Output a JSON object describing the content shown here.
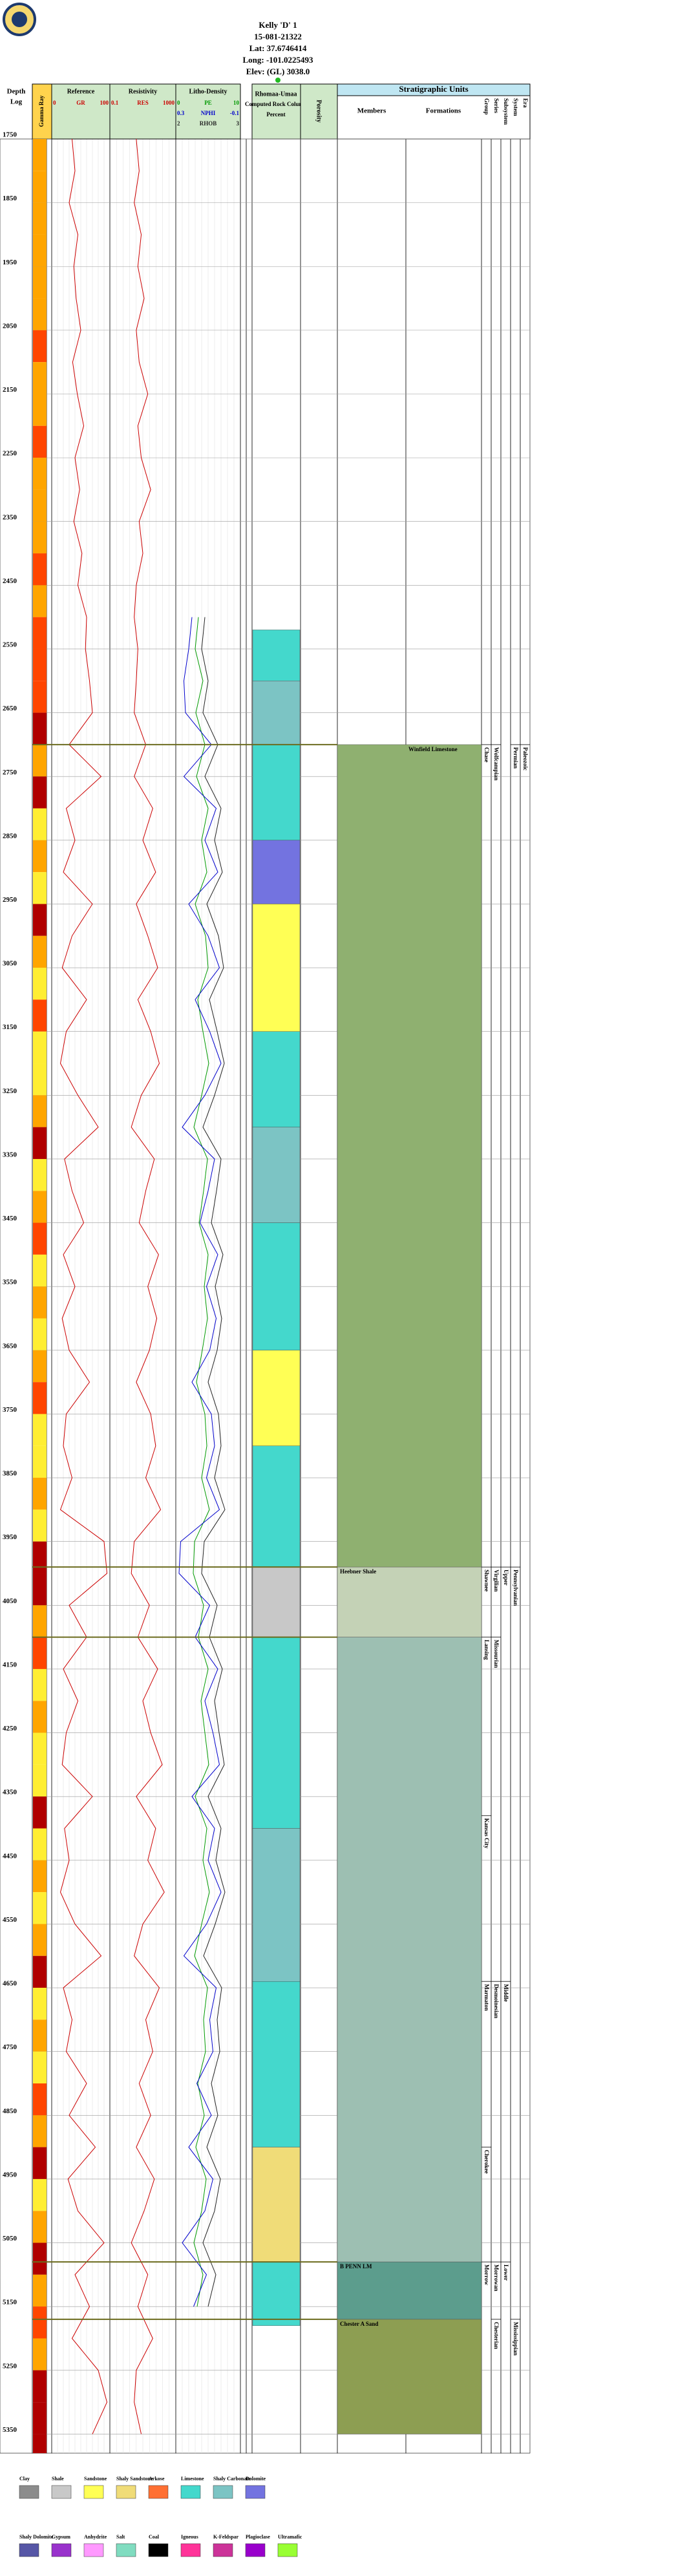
{
  "header": {
    "title": "Kelly 'D' 1",
    "api": "15-081-21322",
    "lat": "Lat: 37.6746414",
    "long": "Long: -101.0225493",
    "elev": "Elev: (GL) 3038.0"
  },
  "columns": {
    "depth": "Depth",
    "log": "Log",
    "gamma": "Gamma Ray",
    "rock": "Rhomaa-Umaa",
    "rock_sub": "Computed Rock Column",
    "rock_unit": "Percent",
    "porosity": "Porosity",
    "strat": "Stratigraphic Units",
    "members": "Members",
    "formations": "Formations",
    "group": "Group",
    "series": "Series",
    "subsystem": "Subsystem",
    "system": "System",
    "era": "Era"
  },
  "chart_data": {
    "type": "well-log",
    "ylim": [
      1750,
      5380
    ],
    "yticks": [
      1750,
      1850,
      1950,
      2050,
      2150,
      2250,
      2350,
      2450,
      2550,
      2650,
      2750,
      2850,
      2950,
      3050,
      3150,
      3250,
      3350,
      3450,
      3550,
      3650,
      3750,
      3850,
      3950,
      4050,
      4150,
      4250,
      4350,
      4450,
      4550,
      4650,
      4750,
      4850,
      4950,
      5050,
      5150,
      5250,
      5350
    ],
    "depths": [
      1750,
      1800,
      1850,
      1900,
      1950,
      2000,
      2050,
      2100,
      2150,
      2200,
      2250,
      2300,
      2350,
      2400,
      2450,
      2500,
      2550,
      2600,
      2650,
      2700,
      2750,
      2800,
      2850,
      2900,
      2950,
      3000,
      3050,
      3100,
      3150,
      3200,
      3250,
      3300,
      3350,
      3400,
      3450,
      3500,
      3550,
      3600,
      3650,
      3700,
      3750,
      3800,
      3850,
      3900,
      3950,
      4000,
      4050,
      4100,
      4150,
      4200,
      4250,
      4300,
      4350,
      4400,
      4450,
      4500,
      4550,
      4600,
      4650,
      4700,
      4750,
      4800,
      4850,
      4900,
      4950,
      5000,
      5050,
      5100,
      5150,
      5200,
      5250,
      5300,
      5350
    ],
    "tracks": [
      {
        "title": "Reference",
        "series": [
          {
            "name": "GR",
            "color": "#cc0000",
            "xlim": [
              0,
              100
            ],
            "values": [
              35,
              40,
              30,
              45,
              38,
              42,
              50,
              36,
              44,
              55,
              40,
              48,
              38,
              52,
              45,
              60,
              58,
              65,
              70,
              30,
              85,
              25,
              40,
              20,
              70,
              35,
              18,
              60,
              25,
              15,
              45,
              80,
              22,
              35,
              55,
              20,
              40,
              18,
              30,
              65,
              25,
              20,
              35,
              15,
              90,
              95,
              30,
              60,
              20,
              45,
              25,
              18,
              70,
              22,
              30,
              15,
              40,
              85,
              20,
              35,
              25,
              60,
              30,
              75,
              28,
              45,
              90,
              40,
              65,
              35,
              80,
              95,
              70
            ]
          }
        ]
      },
      {
        "title": "Resistivity",
        "log": true,
        "series": [
          {
            "name": "RES",
            "color": "#cc0000",
            "xlim": [
              0.1,
              1000
            ],
            "values": [
              4,
              6,
              3,
              8,
              5,
              12,
              4,
              6,
              20,
              5,
              8,
              30,
              6,
              10,
              4,
              3,
              5,
              4,
              3,
              15,
              3,
              40,
              10,
              60,
              4,
              20,
              80,
              5,
              30,
              100,
              8,
              2,
              50,
              15,
              6,
              90,
              20,
              70,
              25,
              4,
              30,
              60,
              15,
              120,
              3,
              2,
              25,
              5,
              80,
              10,
              30,
              150,
              4,
              60,
              20,
              200,
              10,
              3,
              100,
              15,
              40,
              6,
              30,
              4,
              50,
              12,
              2,
              20,
              5,
              40,
              4,
              3,
              8
            ]
          }
        ]
      },
      {
        "title": "Litho-Density",
        "series": [
          {
            "name": "PE",
            "color": "#009900",
            "xlim": [
              0,
              10
            ],
            "values": [
              null,
              null,
              null,
              null,
              null,
              null,
              null,
              null,
              null,
              null,
              null,
              null,
              null,
              null,
              null,
              3.5,
              3.0,
              4.2,
              3.1,
              4.5,
              3.2,
              5.0,
              4.0,
              4.8,
              3.0,
              4.6,
              5.0,
              3.4,
              4.2,
              5.1,
              4.0,
              2.8,
              4.9,
              4.3,
              3.6,
              5.0,
              4.4,
              4.9,
              4.1,
              3.2,
              4.5,
              4.8,
              4.0,
              5.2,
              2.9,
              2.7,
              4.3,
              3.5,
              5.0,
              3.9,
              4.5,
              5.1,
              3.0,
              4.8,
              4.2,
              5.2,
              4.0,
              2.9,
              4.9,
              4.3,
              4.6,
              3.4,
              4.4,
              3.1,
              4.7,
              4.0,
              2.8,
              4.2,
              3.3,
              null,
              null,
              null,
              null
            ]
          },
          {
            "name": "NPHI",
            "color": "#0000cc",
            "xlim": [
              0.3,
              -0.1
            ],
            "values": [
              null,
              null,
              null,
              null,
              null,
              null,
              null,
              null,
              null,
              null,
              null,
              null,
              null,
              null,
              null,
              0.2,
              0.22,
              0.25,
              0.24,
              0.08,
              0.25,
              0.05,
              0.12,
              0.04,
              0.22,
              0.1,
              0.03,
              0.18,
              0.09,
              0.02,
              0.12,
              0.26,
              0.06,
              0.1,
              0.15,
              0.04,
              0.11,
              0.05,
              0.09,
              0.2,
              0.08,
              0.06,
              0.11,
              0.03,
              0.27,
              0.28,
              0.09,
              0.18,
              0.04,
              0.12,
              0.07,
              0.03,
              0.2,
              0.06,
              0.1,
              0.02,
              0.11,
              0.25,
              0.05,
              0.09,
              0.07,
              0.17,
              0.08,
              0.22,
              0.07,
              0.12,
              0.26,
              0.11,
              0.19,
              null,
              null,
              null,
              null
            ]
          },
          {
            "name": "RHOB",
            "color": "#222222",
            "xlim": [
              2,
              3
            ],
            "values": [
              null,
              null,
              null,
              null,
              null,
              null,
              null,
              null,
              null,
              null,
              null,
              null,
              null,
              null,
              null,
              2.45,
              2.4,
              2.5,
              2.42,
              2.65,
              2.45,
              2.7,
              2.6,
              2.72,
              2.48,
              2.66,
              2.74,
              2.52,
              2.64,
              2.75,
              2.6,
              2.42,
              2.7,
              2.63,
              2.55,
              2.73,
              2.61,
              2.71,
              2.64,
              2.5,
              2.66,
              2.7,
              2.6,
              2.76,
              2.44,
              2.4,
              2.64,
              2.52,
              2.72,
              2.6,
              2.67,
              2.75,
              2.5,
              2.7,
              2.62,
              2.76,
              2.61,
              2.43,
              2.71,
              2.64,
              2.68,
              2.55,
              2.65,
              2.48,
              2.69,
              2.6,
              2.42,
              2.62,
              2.5,
              null,
              null,
              null,
              null
            ]
          }
        ]
      }
    ],
    "rock_column": [
      {
        "top": 2520,
        "base": 2600,
        "lithology": "Limestone"
      },
      {
        "top": 2600,
        "base": 2700,
        "lithology": "Shaly Carbonate"
      },
      {
        "top": 2700,
        "base": 2850,
        "lithology": "Limestone"
      },
      {
        "top": 2850,
        "base": 2950,
        "lithology": "Dolomite"
      },
      {
        "top": 2950,
        "base": 3150,
        "lithology": "Sandstone"
      },
      {
        "top": 3150,
        "base": 3300,
        "lithology": "Limestone"
      },
      {
        "top": 3300,
        "base": 3450,
        "lithology": "Shaly Carbonate"
      },
      {
        "top": 3450,
        "base": 3650,
        "lithology": "Limestone"
      },
      {
        "top": 3650,
        "base": 3800,
        "lithology": "Sandstone"
      },
      {
        "top": 3800,
        "base": 3990,
        "lithology": "Limestone"
      },
      {
        "top": 3990,
        "base": 4100,
        "lithology": "Shale"
      },
      {
        "top": 4100,
        "base": 4400,
        "lithology": "Limestone"
      },
      {
        "top": 4400,
        "base": 4640,
        "lithology": "Shaly Carbonate"
      },
      {
        "top": 4640,
        "base": 4900,
        "lithology": "Limestone"
      },
      {
        "top": 4900,
        "base": 5080,
        "lithology": "Shaly Sandstone"
      },
      {
        "top": 5080,
        "base": 5180,
        "lithology": "Limestone"
      }
    ],
    "members": [
      {
        "name": "Winfield Limestone",
        "top": 2700,
        "base": 3990,
        "color": "#8fb070"
      },
      {
        "name": "Heebner Shale",
        "top": 3990,
        "base": 4100,
        "color": "#c4d2b6"
      },
      {
        "top": 4100,
        "base": 5080,
        "color": "#9dbfb2"
      },
      {
        "name": "B PENN LM",
        "top": 5080,
        "base": 5170,
        "color": "#5c9d8d"
      },
      {
        "name": "Chester A Sand",
        "top": 5170,
        "base": 5350,
        "color": "#8d9e52"
      }
    ],
    "units": {
      "group": [
        {
          "name": "Chase",
          "top": 2700,
          "base": 3990
        },
        {
          "name": "Shawnee",
          "top": 3990,
          "base": 4100
        },
        {
          "name": "Lansing",
          "top": 4100,
          "base": 4380
        },
        {
          "name": "Kansas City",
          "top": 4380,
          "base": 4640
        },
        {
          "name": "Marmaton",
          "top": 4640,
          "base": 4900
        },
        {
          "name": "Cherokee",
          "top": 4900,
          "base": 5080
        },
        {
          "name": "Morrow",
          "top": 5080,
          "base": 5170
        }
      ],
      "series": [
        {
          "name": "Wolfcampian",
          "top": 2700,
          "base": 3990
        },
        {
          "name": "Virgilian",
          "top": 3990,
          "base": 4100
        },
        {
          "name": "Missourian",
          "top": 4100,
          "base": 4640
        },
        {
          "name": "Desmoinesian",
          "top": 4640,
          "base": 5080
        },
        {
          "name": "Morrowan",
          "top": 5080,
          "base": 5170
        },
        {
          "name": "Chesterian",
          "top": 5170,
          "base": 5350
        }
      ],
      "subsystem": [
        {
          "name": "Upper",
          "top": 3990,
          "base": 4640
        },
        {
          "name": "Middle",
          "top": 4640,
          "base": 5080
        },
        {
          "name": "Lower",
          "top": 5080,
          "base": 5170
        }
      ],
      "system": [
        {
          "name": "Permian",
          "top": 2700,
          "base": 3990
        },
        {
          "name": "Pennsylvanian",
          "top": 3990,
          "base": 5170
        },
        {
          "name": "Mississippian",
          "top": 5170,
          "base": 5350
        }
      ],
      "era": [
        {
          "name": "Paleozoic",
          "top": 2700,
          "base": 5350
        }
      ]
    },
    "legend": [
      {
        "name": "Clay",
        "color": "#8c8c8c"
      },
      {
        "name": "Shale",
        "color": "#c8c8c8"
      },
      {
        "name": "Sandstone",
        "color": "#ffff55"
      },
      {
        "name": "Shaly Sandstone",
        "color": "#f0dc78"
      },
      {
        "name": "Arkose",
        "color": "#ff7033"
      },
      {
        "name": "Limestone",
        "color": "#44d8cc"
      },
      {
        "name": "Shaly Carbonate",
        "color": "#7cc4c4"
      },
      {
        "name": "Dolomite",
        "color": "#7373e0"
      },
      {
        "name": "Shaly Dolomite",
        "color": "#5656a6"
      },
      {
        "name": "Gypsum",
        "color": "#9932cc"
      },
      {
        "name": "Anhydrite",
        "color": "#ff99ff"
      },
      {
        "name": "Salt",
        "color": "#80dcc0"
      },
      {
        "name": "Coal",
        "color": "#000000"
      },
      {
        "name": "Igneous",
        "color": "#ff3399"
      },
      {
        "name": "K-Feldspar",
        "color": "#cc3399"
      },
      {
        "name": "Plagioclase",
        "color": "#9900cc"
      },
      {
        "name": "Ultramafic",
        "color": "#99ff33"
      }
    ]
  }
}
